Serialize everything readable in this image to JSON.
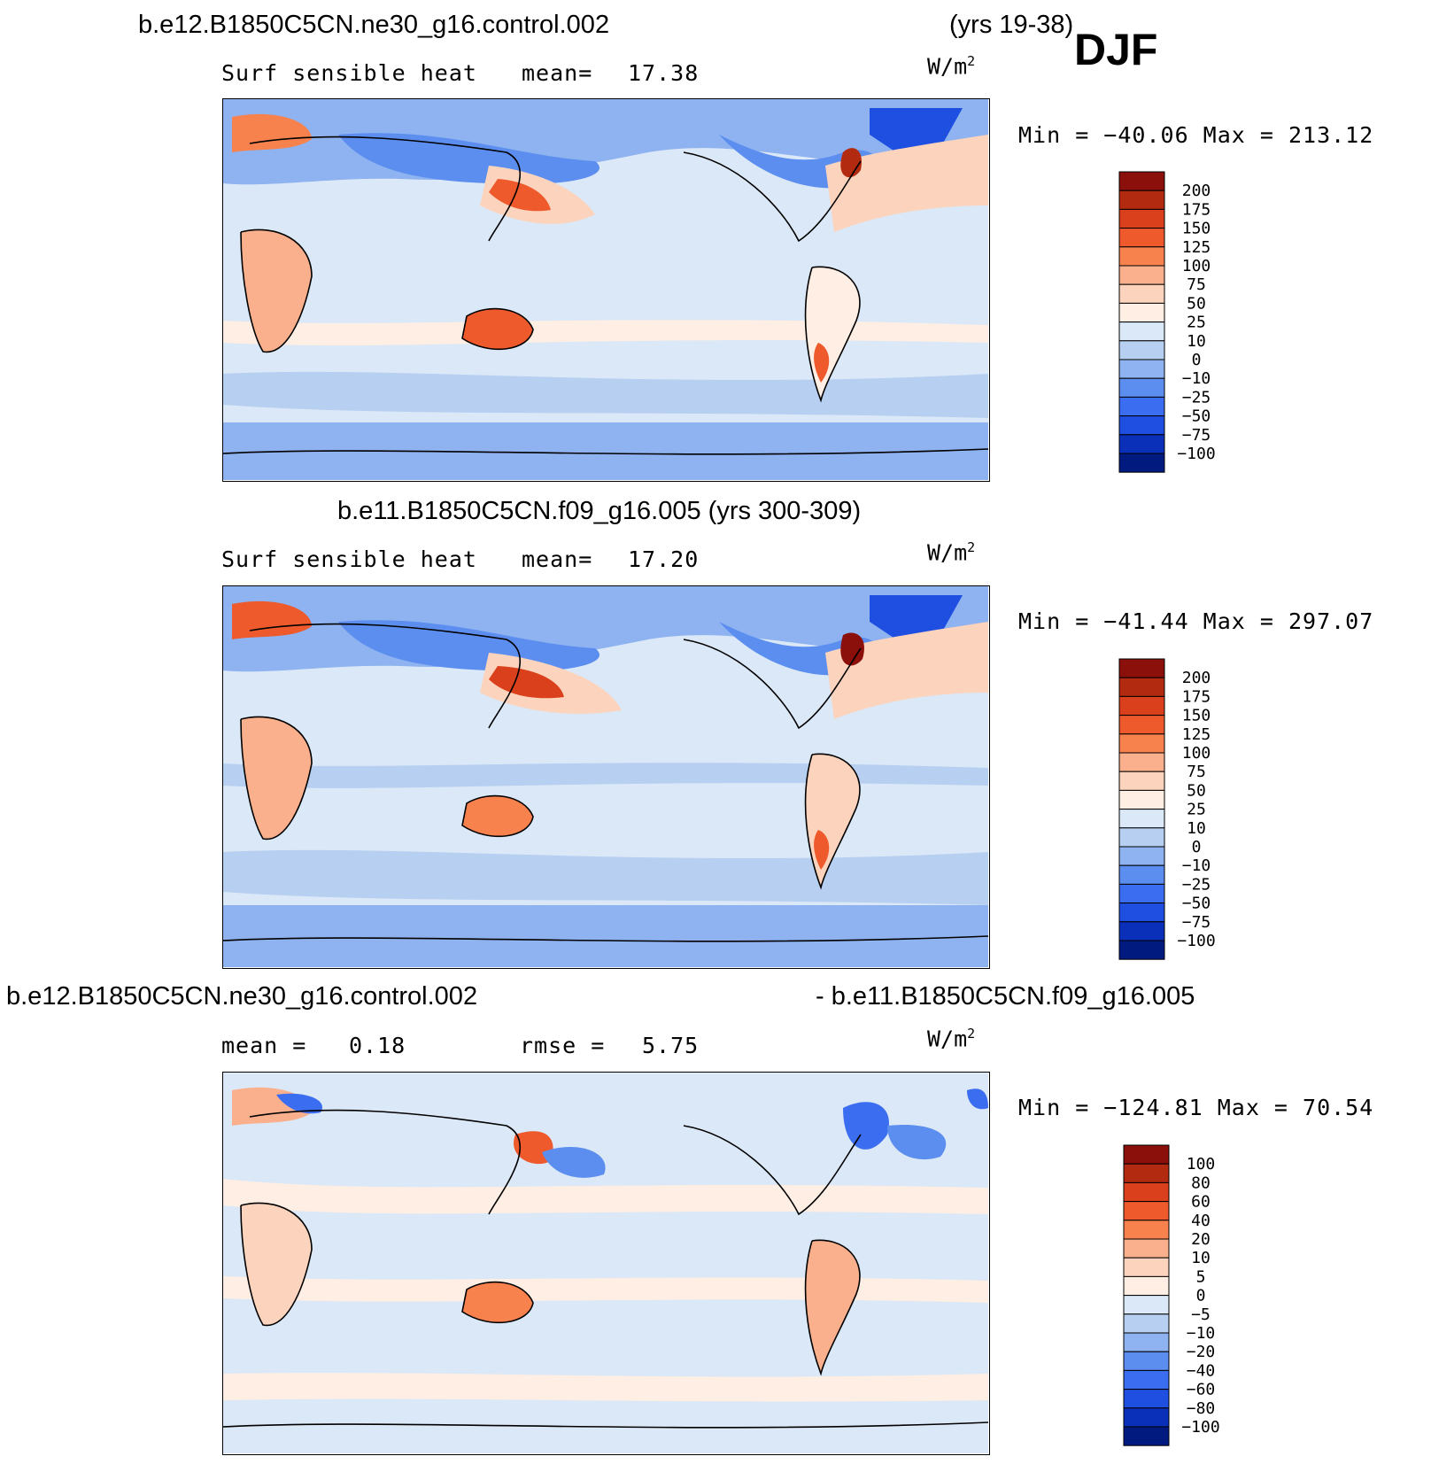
{
  "header": {
    "case1": "b.e12.B1850C5CN.ne30_g16.control.002",
    "years1": "(yrs 19-38)",
    "season": "DJF"
  },
  "panels": [
    {
      "variable": "Surf  sensible  heat",
      "stat_label": "mean=",
      "stat_value": "17.38",
      "units_base": "W/m",
      "units_exp": "2",
      "minmax": "Min  =  −40.06  Max  =  213.12",
      "colorbar": {
        "labels": [
          "200",
          "175",
          "150",
          "125",
          "100",
          "75",
          "50",
          "25",
          "10",
          "0",
          "−10",
          "−25",
          "−50",
          "−75",
          "−100"
        ],
        "colors": [
          "#8b0f0a",
          "#b22a10",
          "#d9401b",
          "#ee5a2c",
          "#f7824d",
          "#fab08c",
          "#fcd4bd",
          "#feeee3",
          "#dbe8f7",
          "#b7cff1",
          "#8eb3f0",
          "#5c8ef0",
          "#3b6df0",
          "#1f4fe0",
          "#0a2fb8",
          "#001a80"
        ]
      }
    },
    {
      "title": "b.e11.B1850C5CN.f09_g16.005 (yrs 300-309)",
      "variable": "Surf  sensible  heat",
      "stat_label": "mean=",
      "stat_value": "17.20",
      "units_base": "W/m",
      "units_exp": "2",
      "minmax": "Min  =  −41.44  Max  =  297.07",
      "colorbar": {
        "labels": [
          "200",
          "175",
          "150",
          "125",
          "100",
          "75",
          "50",
          "25",
          "10",
          "0",
          "−10",
          "−25",
          "−50",
          "−75",
          "−100"
        ],
        "colors": [
          "#8b0f0a",
          "#b22a10",
          "#d9401b",
          "#ee5a2c",
          "#f7824d",
          "#fab08c",
          "#fcd4bd",
          "#feeee3",
          "#dbe8f7",
          "#b7cff1",
          "#8eb3f0",
          "#5c8ef0",
          "#3b6df0",
          "#1f4fe0",
          "#0a2fb8",
          "#001a80"
        ]
      }
    },
    {
      "title_left": "b.e12.B1850C5CN.ne30_g16.control.002",
      "title_right": "- b.e11.B1850C5CN.f09_g16.005",
      "stat_label": "mean  =",
      "stat_value": "0.18",
      "rmse_label": "rmse  =",
      "rmse_value": "5.75",
      "units_base": "W/m",
      "units_exp": "2",
      "minmax": "Min  =  −124.81  Max  =    70.54",
      "colorbar": {
        "labels": [
          "100",
          "80",
          "60",
          "40",
          "20",
          "10",
          "5",
          "0",
          "−5",
          "−10",
          "−20",
          "−40",
          "−60",
          "−80",
          "−100"
        ],
        "colors": [
          "#8b0f0a",
          "#b22a10",
          "#d9401b",
          "#ee5a2c",
          "#f7824d",
          "#fab08c",
          "#fcd4bd",
          "#feeee3",
          "#dbe8f7",
          "#b7cff1",
          "#8eb3f0",
          "#5c8ef0",
          "#3b6df0",
          "#1f4fe0",
          "#0a2fb8",
          "#001a80"
        ]
      }
    }
  ]
}
